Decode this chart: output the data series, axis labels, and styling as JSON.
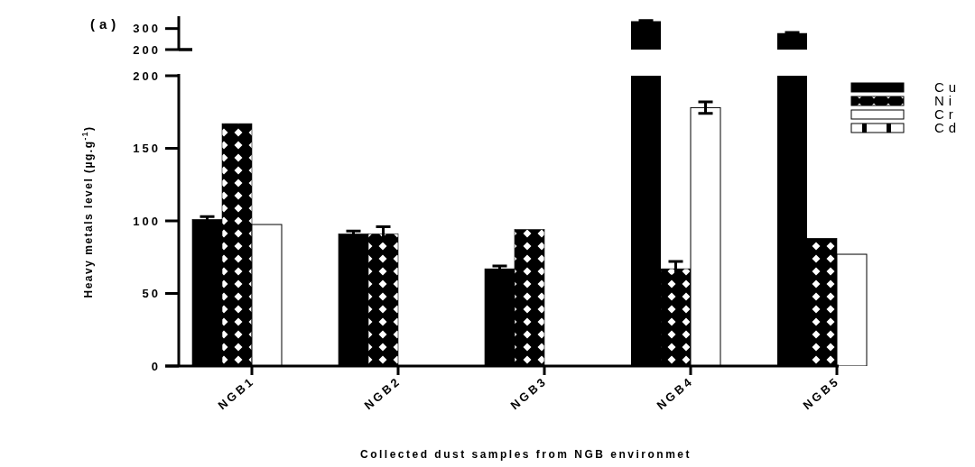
{
  "chart_data": [
    {
      "type": "bar",
      "title": "(a)",
      "categories": [
        "NGB1",
        "NGB2",
        "NGB3",
        "NGB4",
        "NGB5"
      ],
      "ylim": [
        200,
        350
      ],
      "yticks": [
        200,
        300
      ],
      "tick_labels": "y",
      "series": [
        {
          "color": "#000000",
          "values": [
            null,
            null,
            null,
            335,
            278
          ],
          "errors": [
            null,
            null,
            null,
            3,
            3
          ]
        }
      ]
    },
    {
      "type": "bar",
      "categories": [
        "NGB1",
        "NGB2",
        "NGB3",
        "NGB4",
        "NGB5"
      ],
      "xlabel": "Collected dust samples from NGB environmet",
      "ylabel": "Heavy metals level (µg.g$^{-1}$)",
      "ylim": [
        0,
        200
      ],
      "yticks": [
        0,
        50,
        100,
        150,
        200
      ],
      "legend": "top right",
      "series": [
        {
          "name": "Cu",
          "color": "#000000",
          "values": [
            101,
            91,
            67,
            null,
            null
          ],
          "errors": [
            2,
            2,
            2,
            null,
            null
          ]
        },
        {
          "name": "Ni",
          "color": "#000000",
          "values": [
            167,
            91,
            94,
            67,
            88
          ],
          "errors": [
            null,
            5,
            null,
            5,
            null
          ]
        },
        {
          "name": "Cr",
          "color": "#ffffff",
          "values": [
            97.5,
            null,
            null,
            178,
            77
          ],
          "errors": [
            null,
            null,
            null,
            4,
            null
          ]
        },
        {
          "name": "Cd",
          "color": "#ffffff",
          "values": [
            null,
            null,
            null,
            null,
            null
          ]
        }
      ]
    }
  ]
}
